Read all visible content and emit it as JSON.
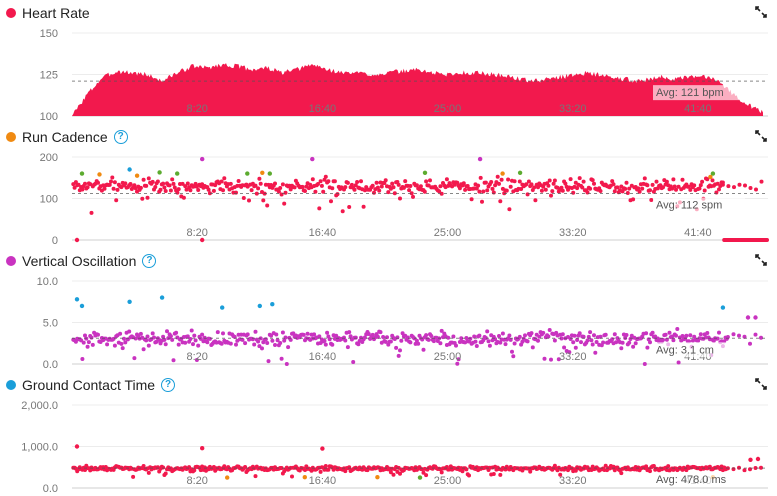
{
  "chart_data": [
    {
      "type": "area",
      "title": "Heart Rate",
      "has_help": false,
      "color": "#f2194d",
      "ylim": [
        100,
        150
      ],
      "y_ticks": [
        "150",
        "125",
        "100"
      ],
      "y_tick_values": [
        150,
        125,
        100
      ],
      "x_ticks": [
        "8:20",
        "16:40",
        "25:00",
        "33:20",
        "41:40"
      ],
      "x_tick_values": [
        500,
        1000,
        1500,
        2000,
        2500
      ],
      "xlim": [
        0,
        2780
      ],
      "avg_value": 121,
      "avg_label": "Avg: 121 bpm",
      "x": [
        0,
        60,
        120,
        180,
        240,
        300,
        360,
        420,
        480,
        540,
        600,
        660,
        720,
        780,
        840,
        900,
        960,
        1020,
        1080,
        1140,
        1200,
        1260,
        1320,
        1380,
        1440,
        1500,
        1560,
        1620,
        1680,
        1740,
        1800,
        1860,
        1920,
        1980,
        2040,
        2100,
        2160,
        2220,
        2280,
        2340,
        2400,
        2460,
        2520,
        2580,
        2640,
        2700,
        2760
      ],
      "values": [
        100,
        113,
        123,
        127,
        126,
        125,
        121,
        126,
        130,
        129,
        131,
        130,
        128,
        129,
        126,
        128,
        131,
        128,
        126,
        126,
        125,
        126,
        127,
        128,
        126,
        125,
        126,
        126,
        125,
        124,
        122,
        121,
        123,
        124,
        126,
        125,
        123,
        122,
        121,
        124,
        122,
        123,
        124,
        122,
        113,
        107,
        102
      ]
    },
    {
      "type": "scatter",
      "title": "Run Cadence",
      "has_help": true,
      "color": "#f2194d",
      "ylim": [
        0,
        200
      ],
      "y_ticks": [
        "200",
        "100",
        "0"
      ],
      "y_tick_values": [
        200,
        100,
        0
      ],
      "x_ticks": [
        "8:20",
        "16:40",
        "25:00",
        "33:20",
        "41:40"
      ],
      "x_tick_values": [
        500,
        1000,
        1500,
        2000,
        2500
      ],
      "xlim": [
        0,
        2780
      ],
      "avg_value": 112,
      "avg_label": "Avg: 112 spm",
      "baseline": 130,
      "spread": 18,
      "seed": 7,
      "tail_zero": true,
      "points": [
        {
          "x": 40,
          "y": 160,
          "c": "#5cab2f"
        },
        {
          "x": 110,
          "y": 158,
          "c": "#f08a11"
        },
        {
          "x": 230,
          "y": 170,
          "c": "#1a9ed9"
        },
        {
          "x": 260,
          "y": 155,
          "c": "#f08a11"
        },
        {
          "x": 350,
          "y": 163,
          "c": "#5cab2f"
        },
        {
          "x": 420,
          "y": 160,
          "c": "#5cab2f"
        },
        {
          "x": 520,
          "y": 195,
          "c": "#c933c0"
        },
        {
          "x": 700,
          "y": 160,
          "c": "#5cab2f"
        },
        {
          "x": 760,
          "y": 162,
          "c": "#f08a11"
        },
        {
          "x": 790,
          "y": 160,
          "c": "#5cab2f"
        },
        {
          "x": 960,
          "y": 195,
          "c": "#c933c0"
        },
        {
          "x": 1410,
          "y": 162,
          "c": "#5cab2f"
        },
        {
          "x": 1630,
          "y": 195,
          "c": "#c933c0"
        },
        {
          "x": 1720,
          "y": 160,
          "c": "#f08a11"
        },
        {
          "x": 1790,
          "y": 162,
          "c": "#5cab2f"
        },
        {
          "x": 2560,
          "y": 160,
          "c": "#5cab2f"
        },
        {
          "x": 2550,
          "y": 152,
          "c": "#f08a11"
        },
        {
          "x": 20,
          "y": 0,
          "c": "#f2194d"
        },
        {
          "x": 520,
          "y": 0,
          "c": "#f2194d"
        }
      ]
    },
    {
      "type": "scatter",
      "title": "Vertical Oscillation",
      "has_help": true,
      "color": "#c933c0",
      "ylim": [
        0,
        10
      ],
      "y_ticks": [
        "10.0",
        "5.0",
        "0.0"
      ],
      "y_tick_values": [
        10,
        5,
        0
      ],
      "x_ticks": [
        "8:20",
        "16:40",
        "25:00",
        "33:20",
        "41:40"
      ],
      "x_tick_values": [
        500,
        1000,
        1500,
        2000,
        2500
      ],
      "xlim": [
        0,
        2780
      ],
      "avg_value": 3.1,
      "avg_label": "Avg: 3.1 cm",
      "baseline": 3.0,
      "spread": 0.9,
      "seed": 13,
      "tail_zero": false,
      "points": [
        {
          "x": 20,
          "y": 7.8,
          "c": "#1a9ed9"
        },
        {
          "x": 40,
          "y": 7.0,
          "c": "#1a9ed9"
        },
        {
          "x": 230,
          "y": 7.5,
          "c": "#1a9ed9"
        },
        {
          "x": 360,
          "y": 8.0,
          "c": "#1a9ed9"
        },
        {
          "x": 600,
          "y": 6.8,
          "c": "#1a9ed9"
        },
        {
          "x": 750,
          "y": 7.0,
          "c": "#1a9ed9"
        },
        {
          "x": 800,
          "y": 7.2,
          "c": "#1a9ed9"
        },
        {
          "x": 2600,
          "y": 6.8,
          "c": "#1a9ed9"
        },
        {
          "x": 2700,
          "y": 5.6,
          "c": "#c933c0"
        },
        {
          "x": 2730,
          "y": 5.6,
          "c": "#c933c0"
        }
      ]
    },
    {
      "type": "scatter",
      "title": "Ground Contact Time",
      "has_help": true,
      "color": "#f2194d",
      "ylim": [
        0,
        2000
      ],
      "y_ticks": [
        "2,000.0",
        "1,000.0",
        "0.0"
      ],
      "y_tick_values": [
        2000,
        1000,
        0
      ],
      "x_ticks": [
        "8:20",
        "16:40",
        "25:00",
        "33:20",
        "41:40"
      ],
      "x_tick_values": [
        500,
        1000,
        1500,
        2000,
        2500
      ],
      "xlim": [
        0,
        2780
      ],
      "avg_value": 478.0,
      "avg_label": "Avg: 478.0 ms",
      "baseline": 470,
      "spread": 55,
      "seed": 29,
      "tail_zero": false,
      "points": [
        {
          "x": 20,
          "y": 1000,
          "c": "#f2194d"
        },
        {
          "x": 520,
          "y": 960,
          "c": "#f2194d"
        },
        {
          "x": 1000,
          "y": 950,
          "c": "#f2194d"
        },
        {
          "x": 620,
          "y": 250,
          "c": "#f08a11"
        },
        {
          "x": 930,
          "y": 260,
          "c": "#f08a11"
        },
        {
          "x": 1220,
          "y": 260,
          "c": "#f08a11"
        },
        {
          "x": 1390,
          "y": 250,
          "c": "#5cab2f"
        },
        {
          "x": 2560,
          "y": 260,
          "c": "#f08a11"
        },
        {
          "x": 2710,
          "y": 680,
          "c": "#f2194d"
        },
        {
          "x": 2740,
          "y": 700,
          "c": "#f2194d"
        }
      ]
    }
  ],
  "panels": [
    {
      "title": "Heart Rate",
      "dot_color": "#f2194d"
    },
    {
      "title": "Run Cadence",
      "dot_color": "#f08a11"
    },
    {
      "title": "Vertical Oscillation",
      "dot_color": "#c933c0"
    },
    {
      "title": "Ground Contact Time",
      "dot_color": "#1a9ed9"
    }
  ],
  "help_glyph": "?",
  "icons": {
    "expand": "expand-icon",
    "help": "help-icon"
  }
}
